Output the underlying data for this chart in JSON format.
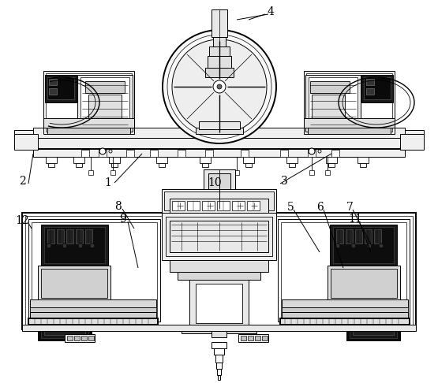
{
  "bg_color": "#ffffff",
  "line_color": "#000000",
  "lw": 0.7,
  "tlw": 1.4,
  "figsize": [
    5.55,
    4.86
  ],
  "dpi": 100
}
